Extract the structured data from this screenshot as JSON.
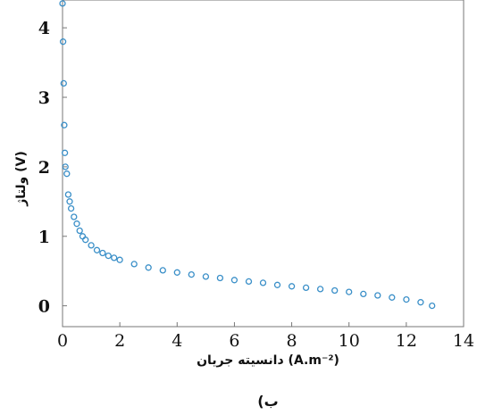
{
  "chart_data": {
    "type": "scatter",
    "title": "",
    "xlabel": "(A.m⁻²) دانسیته جریان",
    "ylabel": "(V) ولتاژ",
    "xlim": [
      0,
      14
    ],
    "ylim": [
      -0.3,
      4.4
    ],
    "grid": false,
    "marker": "hollow-circle",
    "color": "#3a8fc8",
    "x_ticks": [
      "0",
      "2",
      "4",
      "6",
      "8",
      "10",
      "12",
      "14"
    ],
    "y_ticks": [
      "0",
      "1",
      "2",
      "3",
      "4"
    ],
    "series": [
      {
        "points": [
          [
            0.0,
            4.35
          ],
          [
            0.02,
            3.8
          ],
          [
            0.04,
            3.2
          ],
          [
            0.06,
            2.6
          ],
          [
            0.08,
            2.2
          ],
          [
            0.1,
            2.0
          ],
          [
            0.15,
            1.9
          ],
          [
            0.2,
            1.6
          ],
          [
            0.25,
            1.5
          ],
          [
            0.3,
            1.4
          ],
          [
            0.4,
            1.28
          ],
          [
            0.5,
            1.18
          ],
          [
            0.6,
            1.08
          ],
          [
            0.7,
            1.0
          ],
          [
            0.8,
            0.95
          ],
          [
            1.0,
            0.87
          ],
          [
            1.2,
            0.8
          ],
          [
            1.4,
            0.76
          ],
          [
            1.6,
            0.72
          ],
          [
            1.8,
            0.69
          ],
          [
            2.0,
            0.66
          ],
          [
            2.5,
            0.6
          ],
          [
            3.0,
            0.55
          ],
          [
            3.5,
            0.51
          ],
          [
            4.0,
            0.48
          ],
          [
            4.5,
            0.45
          ],
          [
            5.0,
            0.42
          ],
          [
            5.5,
            0.4
          ],
          [
            6.0,
            0.37
          ],
          [
            6.5,
            0.35
          ],
          [
            7.0,
            0.33
          ],
          [
            7.5,
            0.3
          ],
          [
            8.0,
            0.28
          ],
          [
            8.5,
            0.26
          ],
          [
            9.0,
            0.24
          ],
          [
            9.5,
            0.22
          ],
          [
            10.0,
            0.2
          ],
          [
            10.5,
            0.17
          ],
          [
            11.0,
            0.15
          ],
          [
            11.5,
            0.12
          ],
          [
            12.0,
            0.09
          ],
          [
            12.5,
            0.05
          ],
          [
            12.9,
            0.0
          ]
        ]
      }
    ]
  },
  "figure_label": "ب)"
}
